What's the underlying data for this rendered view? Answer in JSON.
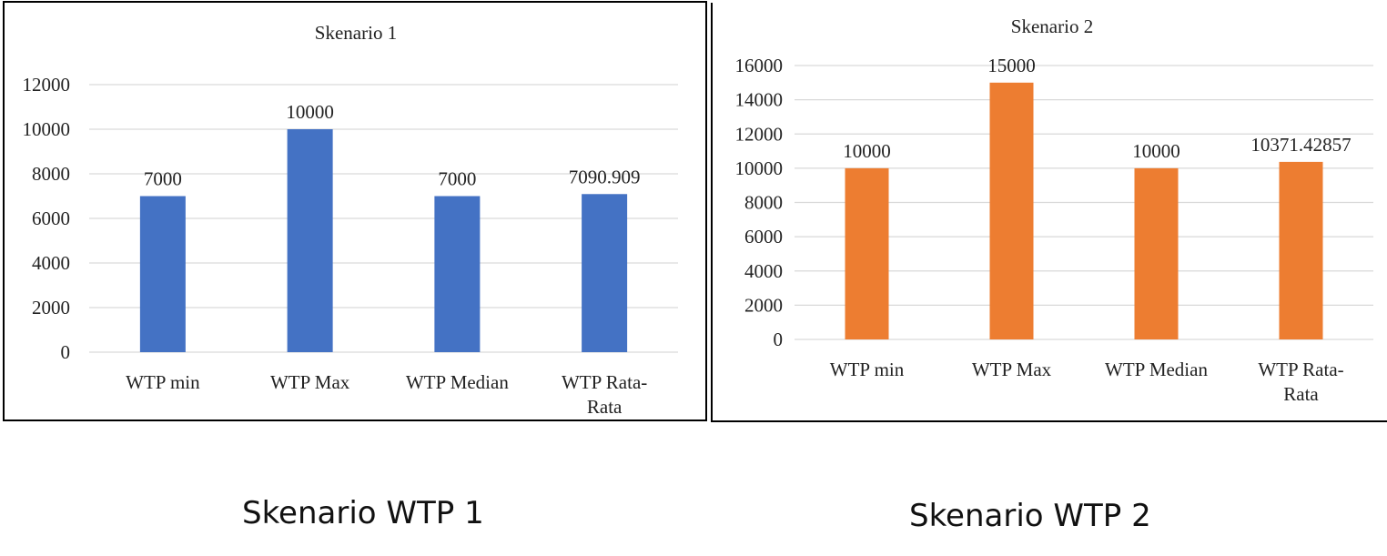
{
  "chart_data": [
    {
      "type": "bar",
      "title": "Skenario 1",
      "categories": [
        [
          "WTP min"
        ],
        [
          "WTP Max"
        ],
        [
          "WTP Median"
        ],
        [
          "WTP Rata-",
          "Rata"
        ]
      ],
      "values": [
        7000,
        10000,
        7000,
        7090.909
      ],
      "value_labels": [
        "7000",
        "10000",
        "7000",
        "7090.909"
      ],
      "yticks": [
        0,
        2000,
        4000,
        6000,
        8000,
        10000,
        12000
      ],
      "ylim": [
        0,
        12000
      ],
      "color": "#4472C4",
      "grid": true,
      "xlabel": "",
      "ylabel": ""
    },
    {
      "type": "bar",
      "title": "Skenario 2",
      "categories": [
        [
          "WTP min"
        ],
        [
          "WTP Max"
        ],
        [
          "WTP Median"
        ],
        [
          "WTP Rata-",
          "Rata"
        ]
      ],
      "values": [
        10000,
        15000,
        10000,
        10371.42857
      ],
      "value_labels": [
        "10000",
        "15000",
        "10000",
        "10371.42857"
      ],
      "yticks": [
        0,
        2000,
        4000,
        6000,
        8000,
        10000,
        12000,
        14000,
        16000
      ],
      "ylim": [
        0,
        16000
      ],
      "color": "#ED7D31",
      "grid": true,
      "xlabel": "",
      "ylabel": ""
    }
  ],
  "captions": {
    "chart1": "Skenario WTP 1",
    "chart2": "Skenario WTP 2"
  }
}
